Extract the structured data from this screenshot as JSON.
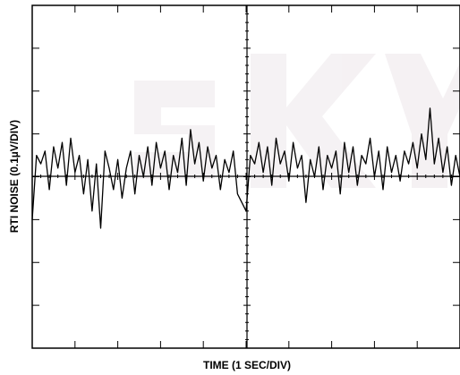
{
  "chart_data": {
    "type": "line",
    "title": "",
    "xlabel": "TIME (1 SEC/DIV)",
    "ylabel": "RTI NOISE (0.1µV/DIV)",
    "x_divisions": 10,
    "y_divisions": 8,
    "xlim": [
      0,
      10
    ],
    "ylim": [
      -4,
      4
    ],
    "grid": "center crosshair with minor ticks",
    "watermark": {
      "text": "SKY الکترونیک",
      "color": "#e9e2e6"
    },
    "colors": {
      "trace": "#000000",
      "frame": "#000000"
    },
    "series": [
      {
        "x": [
          0.0,
          0.1,
          0.2,
          0.3,
          0.4,
          0.5,
          0.6,
          0.7,
          0.8,
          0.9,
          1.0,
          1.1,
          1.2,
          1.3,
          1.4,
          1.5,
          1.6,
          1.7,
          1.8,
          1.9,
          2.0,
          2.1,
          2.2,
          2.3,
          2.4,
          2.5,
          2.6,
          2.7,
          2.8,
          2.9,
          3.0,
          3.1,
          3.2,
          3.3,
          3.4,
          3.5,
          3.6,
          3.7,
          3.8,
          3.9,
          4.0,
          4.1,
          4.2,
          4.3,
          4.4,
          4.5,
          4.6,
          4.7,
          4.8,
          4.9,
          5.0,
          5.1,
          5.2,
          5.3,
          5.4,
          5.5,
          5.6,
          5.7,
          5.8,
          5.9,
          6.0,
          6.1,
          6.2,
          6.3,
          6.4,
          6.5,
          6.6,
          6.7,
          6.8,
          6.9,
          7.0,
          7.1,
          7.2,
          7.3,
          7.4,
          7.5,
          7.6,
          7.7,
          7.8,
          7.9,
          8.0,
          8.1,
          8.2,
          8.3,
          8.4,
          8.5,
          8.6,
          8.7,
          8.8,
          8.9,
          9.0,
          9.1,
          9.2,
          9.3,
          9.4,
          9.5,
          9.6,
          9.7,
          9.8,
          9.9,
          10.0
        ],
        "values": [
          -1.0,
          0.5,
          0.3,
          0.6,
          -0.3,
          0.7,
          0.2,
          0.8,
          -0.2,
          0.9,
          0.1,
          0.5,
          -0.4,
          0.4,
          -0.8,
          0.3,
          -1.2,
          0.6,
          0.2,
          -0.3,
          0.4,
          -0.5,
          0.2,
          0.6,
          -0.4,
          0.5,
          0.0,
          0.7,
          -0.2,
          0.8,
          0.2,
          0.6,
          -0.3,
          0.5,
          0.1,
          0.9,
          -0.2,
          1.1,
          0.3,
          0.8,
          -0.1,
          0.7,
          0.2,
          0.5,
          -0.3,
          0.4,
          0.1,
          0.6,
          -0.4,
          -0.6,
          -0.8,
          0.5,
          0.3,
          0.8,
          0.1,
          0.7,
          -0.2,
          0.9,
          0.3,
          0.6,
          -0.1,
          0.8,
          0.2,
          0.5,
          -0.6,
          0.4,
          0.0,
          0.7,
          -0.3,
          0.5,
          0.2,
          0.6,
          -0.4,
          0.8,
          0.1,
          0.7,
          -0.2,
          0.5,
          0.3,
          0.9,
          0.0,
          0.6,
          -0.3,
          0.7,
          0.1,
          0.5,
          -0.1,
          0.6,
          0.3,
          0.8,
          0.2,
          1.0,
          0.4,
          1.6,
          0.3,
          0.9,
          0.1,
          0.7,
          -0.2,
          0.5,
          0.0
        ]
      }
    ]
  }
}
